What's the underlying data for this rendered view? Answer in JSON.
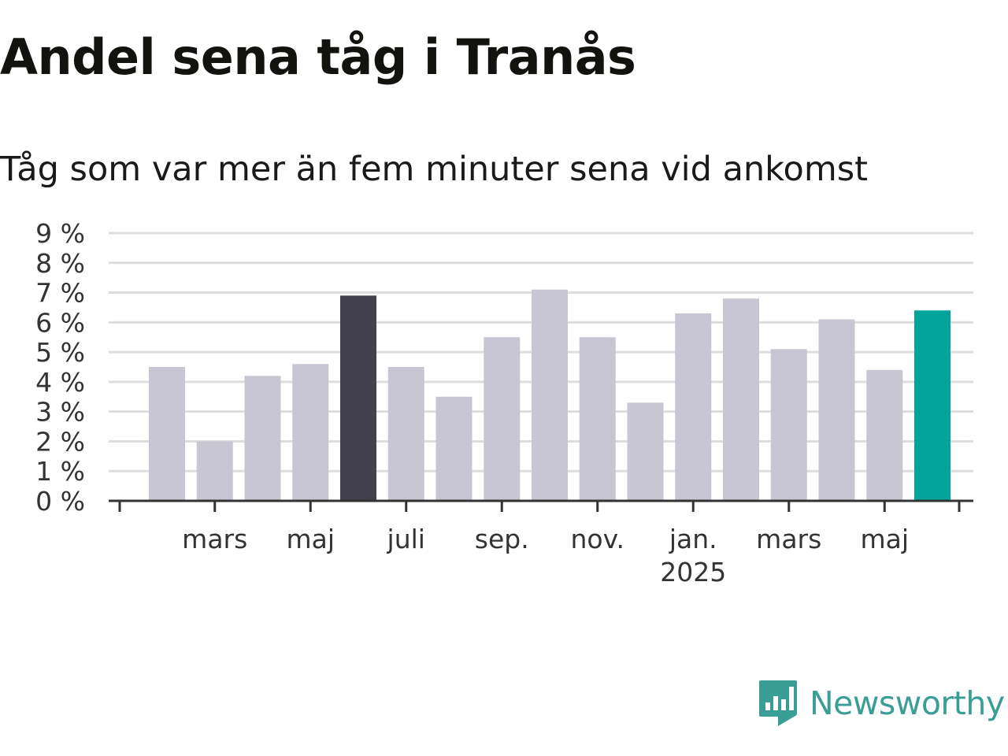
{
  "title": "Andel sena tåg i Tranås",
  "subtitle": "Tåg som var mer än fem minuter sena vid ankomst",
  "brand": {
    "name": "Newsworthy",
    "color": "#3a9e96",
    "icon": "newsworthy-logo-icon"
  },
  "colors": {
    "default": "#c8c6d2",
    "highlight_max_prev": "#43414e",
    "latest": "#00a49a",
    "grid": "#dddddd",
    "axis": "#333333"
  },
  "chart_data": {
    "type": "bar",
    "x_tick_labels": [
      "mars",
      "maj",
      "juli",
      "sep.",
      "nov.",
      "jan.\n2025",
      "mars",
      "maj"
    ],
    "values": [
      4.5,
      2.0,
      4.2,
      4.6,
      6.9,
      4.5,
      3.5,
      5.5,
      7.1,
      5.5,
      3.3,
      6.3,
      6.8,
      5.1,
      6.1,
      4.4,
      6.4
    ],
    "highlight": {
      "4": "dark",
      "16": "latest"
    },
    "ylim": [
      0,
      9
    ],
    "yticks": [
      "0 %",
      "1 %",
      "2 %",
      "3 %",
      "4 %",
      "5 %",
      "6 %",
      "7 %",
      "8 %",
      "9 %"
    ],
    "grid": true,
    "xlabel": "",
    "ylabel": ""
  }
}
